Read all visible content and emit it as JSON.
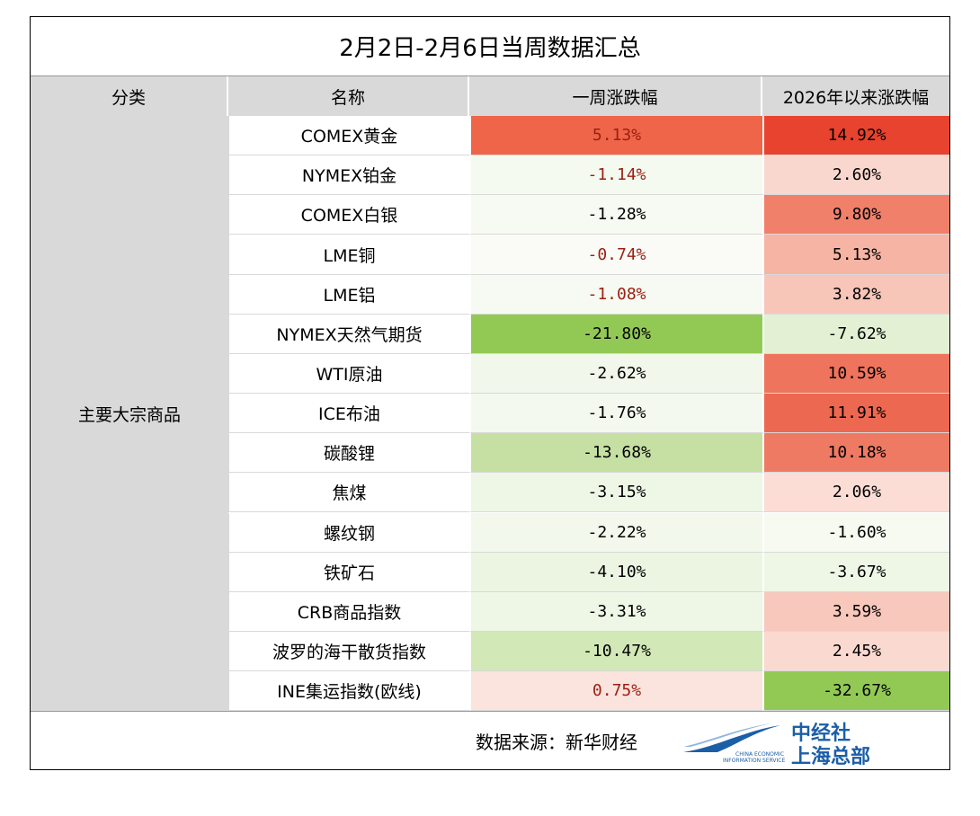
{
  "title": "2月2日-2月6日当周数据汇总",
  "table": {
    "headers": [
      "分类",
      "名称",
      "一周涨跌幅",
      "2026年以来涨跌幅"
    ],
    "group": "主要大宗商品",
    "rows": [
      {
        "name": "COMEX黄金",
        "week": {
          "text": "5.13%",
          "fill": "#ee6549",
          "color": "#9c1f10"
        },
        "ytd": {
          "text": "14.92%",
          "fill": "#e8432e",
          "color": "#000000"
        }
      },
      {
        "name": "NYMEX铂金",
        "week": {
          "text": "-1.14%",
          "fill": "#f5faf0",
          "color": "#9c1f10"
        },
        "ytd": {
          "text": "2.60%",
          "fill": "#fad7ce",
          "color": "#000000"
        }
      },
      {
        "name": "COMEX白银",
        "week": {
          "text": "-1.28%",
          "fill": "#f6faf2",
          "color": "#000000"
        },
        "ytd": {
          "text": "9.80%",
          "fill": "#f0806a",
          "color": "#000000"
        }
      },
      {
        "name": "LME铜",
        "week": {
          "text": "-0.74%",
          "fill": "#fafbf7",
          "color": "#9c1f10"
        },
        "ytd": {
          "text": "5.13%",
          "fill": "#f6b4a5",
          "color": "#000000"
        }
      },
      {
        "name": "LME铝",
        "week": {
          "text": "-1.08%",
          "fill": "#f7faf3",
          "color": "#9c1f10"
        },
        "ytd": {
          "text": "3.82%",
          "fill": "#f8c5b9",
          "color": "#000000"
        }
      },
      {
        "name": "NYMEX天然气期货",
        "week": {
          "text": "-21.80%",
          "fill": "#92c955",
          "color": "#000000"
        },
        "ytd": {
          "text": "-7.62%",
          "fill": "#e3f0d4",
          "color": "#000000"
        }
      },
      {
        "name": "WTI原油",
        "week": {
          "text": "-2.62%",
          "fill": "#f1f7ea",
          "color": "#000000"
        },
        "ytd": {
          "text": "10.59%",
          "fill": "#ef745d",
          "color": "#000000"
        }
      },
      {
        "name": "ICE布油",
        "week": {
          "text": "-1.76%",
          "fill": "#f4f9ef",
          "color": "#000000"
        },
        "ytd": {
          "text": "11.91%",
          "fill": "#ed6850",
          "color": "#000000"
        }
      },
      {
        "name": "碳酸锂",
        "week": {
          "text": "-13.68%",
          "fill": "#c6e0a4",
          "color": "#000000"
        },
        "ytd": {
          "text": "10.18%",
          "fill": "#ef7a64",
          "color": "#000000"
        }
      },
      {
        "name": "焦煤",
        "week": {
          "text": "-3.15%",
          "fill": "#eef6e5",
          "color": "#000000"
        },
        "ytd": {
          "text": "2.06%",
          "fill": "#fbddd6",
          "color": "#000000"
        }
      },
      {
        "name": "螺纹钢",
        "week": {
          "text": "-2.22%",
          "fill": "#f2f8ec",
          "color": "#000000"
        },
        "ytd": {
          "text": "-1.60%",
          "fill": "#f6faf1",
          "color": "#000000"
        }
      },
      {
        "name": "铁矿石",
        "week": {
          "text": "-4.10%",
          "fill": "#ecf5e2",
          "color": "#000000"
        },
        "ytd": {
          "text": "-3.67%",
          "fill": "#eef6e6",
          "color": "#000000"
        }
      },
      {
        "name": "CRB商品指数",
        "week": {
          "text": "-3.31%",
          "fill": "#eef6e6",
          "color": "#000000"
        },
        "ytd": {
          "text": "3.59%",
          "fill": "#f8c8bc",
          "color": "#000000"
        }
      },
      {
        "name": "波罗的海干散货指数",
        "week": {
          "text": "-10.47%",
          "fill": "#d2e8b6",
          "color": "#000000"
        },
        "ytd": {
          "text": "2.45%",
          "fill": "#fad9d1",
          "color": "#000000"
        }
      },
      {
        "name": "INE集运指数(欧线)",
        "week": {
          "text": "0.75%",
          "fill": "#fbe3de",
          "color": "#9c1f10"
        },
        "ytd": {
          "text": "-32.67%",
          "fill": "#92c955",
          "color": "#000000"
        }
      }
    ]
  },
  "footer": {
    "source": "数据来源：新华财经",
    "logo_en_1": "CHINA ECONOMIC",
    "logo_en_2": "INFORMATION SERVICE",
    "logo_cn_1": "中经社",
    "logo_cn_2": "上海总部"
  }
}
